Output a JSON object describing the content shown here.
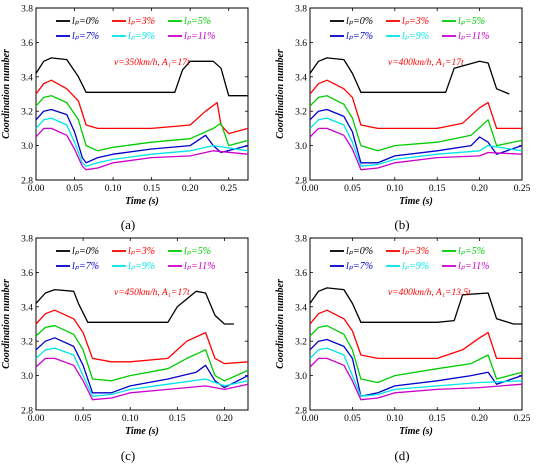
{
  "chart_data": [
    {
      "type": "line",
      "panel_label": "(a)",
      "annotation": "v=350km/h, A₁=17t",
      "xlabel": "Time (s)",
      "ylabel": "Coordination number",
      "xlim": [
        0,
        0.275
      ],
      "ylim": [
        2.8,
        3.8
      ],
      "xticks": [
        "0.00",
        "0.05",
        "0.10",
        "0.15",
        "0.20",
        "0.25"
      ],
      "yticks": [
        "2.8",
        "3.0",
        "3.2",
        "3.4",
        "3.6",
        "3.8"
      ],
      "legend": [
        "lₚ=0%",
        "lₚ=3%",
        "lₚ=5%",
        "lₚ=7%",
        "lₚ=9%",
        "lₚ=11%"
      ],
      "series": [
        {
          "name": "lₚ=0%",
          "color": "#000000",
          "x": [
            0,
            0.01,
            0.02,
            0.04,
            0.055,
            0.065,
            0.08,
            0.1,
            0.15,
            0.18,
            0.19,
            0.2,
            0.23,
            0.24,
            0.25,
            0.275
          ],
          "y": [
            3.42,
            3.49,
            3.51,
            3.5,
            3.4,
            3.31,
            3.31,
            3.31,
            3.31,
            3.31,
            3.44,
            3.49,
            3.49,
            3.45,
            3.29,
            3.29
          ]
        },
        {
          "name": "lₚ=3%",
          "color": "#ff0000",
          "x": [
            0,
            0.01,
            0.02,
            0.04,
            0.055,
            0.065,
            0.08,
            0.1,
            0.15,
            0.2,
            0.22,
            0.235,
            0.24,
            0.25,
            0.275
          ],
          "y": [
            3.3,
            3.36,
            3.38,
            3.33,
            3.26,
            3.12,
            3.1,
            3.1,
            3.1,
            3.12,
            3.2,
            3.25,
            3.12,
            3.07,
            3.1
          ]
        },
        {
          "name": "lₚ=5%",
          "color": "#00cc00",
          "x": [
            0,
            0.01,
            0.02,
            0.04,
            0.055,
            0.065,
            0.08,
            0.1,
            0.15,
            0.2,
            0.23,
            0.24,
            0.25,
            0.275
          ],
          "y": [
            3.23,
            3.28,
            3.29,
            3.25,
            3.15,
            3.0,
            2.97,
            2.99,
            3.02,
            3.04,
            3.1,
            3.13,
            3.0,
            3.03
          ]
        },
        {
          "name": "lₚ=7%",
          "color": "#0000cc",
          "x": [
            0,
            0.01,
            0.02,
            0.04,
            0.05,
            0.06,
            0.065,
            0.08,
            0.1,
            0.15,
            0.2,
            0.22,
            0.23,
            0.24,
            0.275
          ],
          "y": [
            3.15,
            3.2,
            3.21,
            3.18,
            3.08,
            2.93,
            2.9,
            2.93,
            2.95,
            2.98,
            3.0,
            3.06,
            3.0,
            2.96,
            3.0
          ]
        },
        {
          "name": "lₚ=9%",
          "color": "#00e5e5",
          "x": [
            0,
            0.01,
            0.02,
            0.04,
            0.05,
            0.06,
            0.065,
            0.08,
            0.1,
            0.15,
            0.2,
            0.23,
            0.275
          ],
          "y": [
            3.1,
            3.15,
            3.16,
            3.12,
            3.02,
            2.9,
            2.88,
            2.9,
            2.92,
            2.95,
            2.97,
            3.0,
            2.97
          ]
        },
        {
          "name": "lₚ=11%",
          "color": "#cc00cc",
          "x": [
            0,
            0.01,
            0.02,
            0.04,
            0.05,
            0.06,
            0.065,
            0.08,
            0.1,
            0.15,
            0.2,
            0.23,
            0.275
          ],
          "y": [
            3.05,
            3.1,
            3.1,
            3.06,
            2.98,
            2.88,
            2.86,
            2.87,
            2.9,
            2.93,
            2.94,
            2.97,
            2.95
          ]
        }
      ]
    },
    {
      "type": "line",
      "panel_label": "(b)",
      "annotation": "v=400km/h, A₁=17t",
      "xlabel": "Time (s)",
      "ylabel": "Coordination number",
      "xlim": [
        0,
        0.25
      ],
      "ylim": [
        2.8,
        3.8
      ],
      "xticks": [
        "0.00",
        "0.05",
        "0.10",
        "0.15",
        "0.20",
        "0.25"
      ],
      "yticks": [
        "2.8",
        "3.0",
        "3.2",
        "3.4",
        "3.6",
        "3.8"
      ],
      "legend": [
        "lₚ=0%",
        "lₚ=3%",
        "lₚ=5%",
        "lₚ=7%",
        "lₚ=9%",
        "lₚ=11%"
      ],
      "series": [
        {
          "name": "lₚ=0%",
          "color": "#000000",
          "x": [
            0,
            0.01,
            0.02,
            0.04,
            0.05,
            0.06,
            0.08,
            0.1,
            0.15,
            0.16,
            0.17,
            0.2,
            0.21,
            0.22,
            0.235
          ],
          "y": [
            3.42,
            3.49,
            3.51,
            3.5,
            3.42,
            3.31,
            3.31,
            3.31,
            3.31,
            3.31,
            3.45,
            3.49,
            3.48,
            3.33,
            3.3
          ]
        },
        {
          "name": "lₚ=3%",
          "color": "#ff0000",
          "x": [
            0,
            0.01,
            0.02,
            0.04,
            0.05,
            0.06,
            0.08,
            0.1,
            0.15,
            0.18,
            0.2,
            0.21,
            0.22,
            0.25
          ],
          "y": [
            3.3,
            3.36,
            3.38,
            3.33,
            3.28,
            3.12,
            3.1,
            3.1,
            3.1,
            3.13,
            3.22,
            3.25,
            3.1,
            3.1
          ]
        },
        {
          "name": "lₚ=5%",
          "color": "#00cc00",
          "x": [
            0,
            0.01,
            0.02,
            0.04,
            0.05,
            0.06,
            0.08,
            0.1,
            0.15,
            0.19,
            0.21,
            0.22,
            0.25
          ],
          "y": [
            3.23,
            3.28,
            3.29,
            3.24,
            3.16,
            3.0,
            2.97,
            3.0,
            3.02,
            3.06,
            3.15,
            3.0,
            3.03
          ]
        },
        {
          "name": "lₚ=7%",
          "color": "#0000cc",
          "x": [
            0,
            0.01,
            0.02,
            0.04,
            0.05,
            0.06,
            0.08,
            0.1,
            0.15,
            0.19,
            0.2,
            0.21,
            0.22,
            0.25
          ],
          "y": [
            3.15,
            3.2,
            3.21,
            3.17,
            3.08,
            2.9,
            2.9,
            2.94,
            2.97,
            3.0,
            3.05,
            3.02,
            2.95,
            3.0
          ]
        },
        {
          "name": "lₚ=9%",
          "color": "#00e5e5",
          "x": [
            0,
            0.01,
            0.02,
            0.04,
            0.05,
            0.06,
            0.08,
            0.1,
            0.15,
            0.2,
            0.21,
            0.25
          ],
          "y": [
            3.1,
            3.15,
            3.16,
            3.12,
            3.02,
            2.88,
            2.89,
            2.92,
            2.95,
            2.97,
            3.0,
            2.97
          ]
        },
        {
          "name": "lₚ=11%",
          "color": "#cc00cc",
          "x": [
            0,
            0.01,
            0.02,
            0.04,
            0.05,
            0.06,
            0.08,
            0.1,
            0.15,
            0.2,
            0.21,
            0.25
          ],
          "y": [
            3.05,
            3.1,
            3.1,
            3.06,
            2.98,
            2.86,
            2.87,
            2.9,
            2.93,
            2.94,
            2.96,
            2.95
          ]
        }
      ]
    },
    {
      "type": "line",
      "panel_label": "(c)",
      "annotation": "v=450km/h, A₁=17t",
      "xlabel": "Time (s)",
      "ylabel": "Coordination number",
      "xlim": [
        0,
        0.225
      ],
      "ylim": [
        2.8,
        3.8
      ],
      "xticks": [
        "0.00",
        "0.05",
        "0.10",
        "0.15",
        "0.20"
      ],
      "yticks": [
        "2.8",
        "3.0",
        "3.2",
        "3.4",
        "3.6",
        "3.8"
      ],
      "legend": [
        "lₚ=0%",
        "lₚ=3%",
        "lₚ=5%",
        "lₚ=7%",
        "lₚ=9%",
        "lₚ=11%"
      ],
      "series": [
        {
          "name": "lₚ=0%",
          "color": "#000000",
          "x": [
            0,
            0.01,
            0.02,
            0.04,
            0.045,
            0.055,
            0.08,
            0.1,
            0.14,
            0.15,
            0.17,
            0.18,
            0.19,
            0.2,
            0.21
          ],
          "y": [
            3.42,
            3.48,
            3.5,
            3.49,
            3.42,
            3.31,
            3.31,
            3.31,
            3.31,
            3.4,
            3.49,
            3.48,
            3.35,
            3.3,
            3.3
          ]
        },
        {
          "name": "lₚ=3%",
          "color": "#ff0000",
          "x": [
            0,
            0.01,
            0.02,
            0.04,
            0.05,
            0.06,
            0.08,
            0.1,
            0.14,
            0.16,
            0.18,
            0.19,
            0.2,
            0.225
          ],
          "y": [
            3.3,
            3.36,
            3.38,
            3.33,
            3.25,
            3.1,
            3.08,
            3.08,
            3.1,
            3.2,
            3.25,
            3.1,
            3.07,
            3.08
          ]
        },
        {
          "name": "lₚ=5%",
          "color": "#00cc00",
          "x": [
            0,
            0.01,
            0.02,
            0.04,
            0.05,
            0.06,
            0.08,
            0.1,
            0.14,
            0.16,
            0.18,
            0.19,
            0.2,
            0.225
          ],
          "y": [
            3.23,
            3.28,
            3.29,
            3.24,
            3.15,
            2.98,
            2.97,
            3.0,
            3.04,
            3.1,
            3.15,
            3.0,
            2.97,
            3.03
          ]
        },
        {
          "name": "lₚ=7%",
          "color": "#0000cc",
          "x": [
            0,
            0.01,
            0.02,
            0.04,
            0.05,
            0.06,
            0.08,
            0.1,
            0.14,
            0.17,
            0.18,
            0.19,
            0.2,
            0.225
          ],
          "y": [
            3.15,
            3.2,
            3.22,
            3.17,
            3.06,
            2.9,
            2.9,
            2.94,
            2.98,
            3.02,
            3.06,
            2.97,
            2.93,
            3.0
          ]
        },
        {
          "name": "lₚ=9%",
          "color": "#00e5e5",
          "x": [
            0,
            0.01,
            0.02,
            0.04,
            0.05,
            0.06,
            0.08,
            0.1,
            0.14,
            0.18,
            0.2,
            0.225
          ],
          "y": [
            3.1,
            3.15,
            3.16,
            3.12,
            3.0,
            2.88,
            2.89,
            2.92,
            2.95,
            2.98,
            2.94,
            2.97
          ]
        },
        {
          "name": "lₚ=11%",
          "color": "#cc00cc",
          "x": [
            0,
            0.01,
            0.02,
            0.04,
            0.05,
            0.06,
            0.08,
            0.1,
            0.14,
            0.18,
            0.2,
            0.225
          ],
          "y": [
            3.05,
            3.1,
            3.1,
            3.06,
            2.97,
            2.86,
            2.87,
            2.9,
            2.92,
            2.94,
            2.92,
            2.95
          ]
        }
      ]
    },
    {
      "type": "line",
      "panel_label": "(d)",
      "annotation": "v=400km/h, A₁=13.5t",
      "xlabel": "Time (s)",
      "ylabel": "Coordination number",
      "xlim": [
        0,
        0.25
      ],
      "ylim": [
        2.8,
        3.8
      ],
      "xticks": [
        "0.00",
        "0.05",
        "0.10",
        "0.15",
        "0.20",
        "0.25"
      ],
      "yticks": [
        "2.8",
        "3.0",
        "3.2",
        "3.4",
        "3.6",
        "3.8"
      ],
      "legend": [
        "lₚ=0%",
        "lₚ=3%",
        "lₚ=5%",
        "lₚ=7%",
        "lₚ=9%",
        "lₚ=11%"
      ],
      "series": [
        {
          "name": "lₚ=0%",
          "color": "#000000",
          "x": [
            0,
            0.01,
            0.02,
            0.04,
            0.05,
            0.06,
            0.08,
            0.1,
            0.15,
            0.17,
            0.18,
            0.21,
            0.22,
            0.24,
            0.25
          ],
          "y": [
            3.42,
            3.49,
            3.51,
            3.5,
            3.42,
            3.31,
            3.31,
            3.31,
            3.31,
            3.32,
            3.47,
            3.48,
            3.33,
            3.3,
            3.3
          ]
        },
        {
          "name": "lₚ=3%",
          "color": "#ff0000",
          "x": [
            0,
            0.01,
            0.02,
            0.04,
            0.05,
            0.06,
            0.08,
            0.1,
            0.15,
            0.18,
            0.2,
            0.21,
            0.22,
            0.25
          ],
          "y": [
            3.3,
            3.36,
            3.38,
            3.33,
            3.26,
            3.12,
            3.1,
            3.1,
            3.1,
            3.15,
            3.22,
            3.25,
            3.1,
            3.1
          ]
        },
        {
          "name": "lₚ=5%",
          "color": "#00cc00",
          "x": [
            0,
            0.01,
            0.02,
            0.04,
            0.05,
            0.06,
            0.08,
            0.1,
            0.15,
            0.19,
            0.21,
            0.22,
            0.25
          ],
          "y": [
            3.23,
            3.28,
            3.29,
            3.24,
            3.15,
            2.98,
            2.96,
            3.0,
            3.04,
            3.07,
            3.12,
            2.98,
            3.02
          ]
        },
        {
          "name": "lₚ=7%",
          "color": "#0000cc",
          "x": [
            0,
            0.01,
            0.02,
            0.04,
            0.05,
            0.06,
            0.08,
            0.1,
            0.15,
            0.19,
            0.21,
            0.22,
            0.25
          ],
          "y": [
            3.15,
            3.2,
            3.21,
            3.17,
            3.1,
            2.88,
            2.9,
            2.94,
            2.97,
            3.0,
            3.02,
            2.95,
            3.0
          ]
        },
        {
          "name": "lₚ=9%",
          "color": "#00e5e5",
          "x": [
            0,
            0.01,
            0.02,
            0.04,
            0.05,
            0.06,
            0.08,
            0.1,
            0.15,
            0.2,
            0.25
          ],
          "y": [
            3.1,
            3.15,
            3.16,
            3.12,
            3.0,
            2.88,
            2.89,
            2.92,
            2.94,
            2.96,
            2.97
          ]
        },
        {
          "name": "lₚ=11%",
          "color": "#cc00cc",
          "x": [
            0,
            0.01,
            0.02,
            0.04,
            0.05,
            0.06,
            0.08,
            0.1,
            0.15,
            0.2,
            0.25
          ],
          "y": [
            3.05,
            3.1,
            3.1,
            3.06,
            2.97,
            2.86,
            2.87,
            2.9,
            2.92,
            2.93,
            2.95
          ]
        }
      ]
    }
  ]
}
